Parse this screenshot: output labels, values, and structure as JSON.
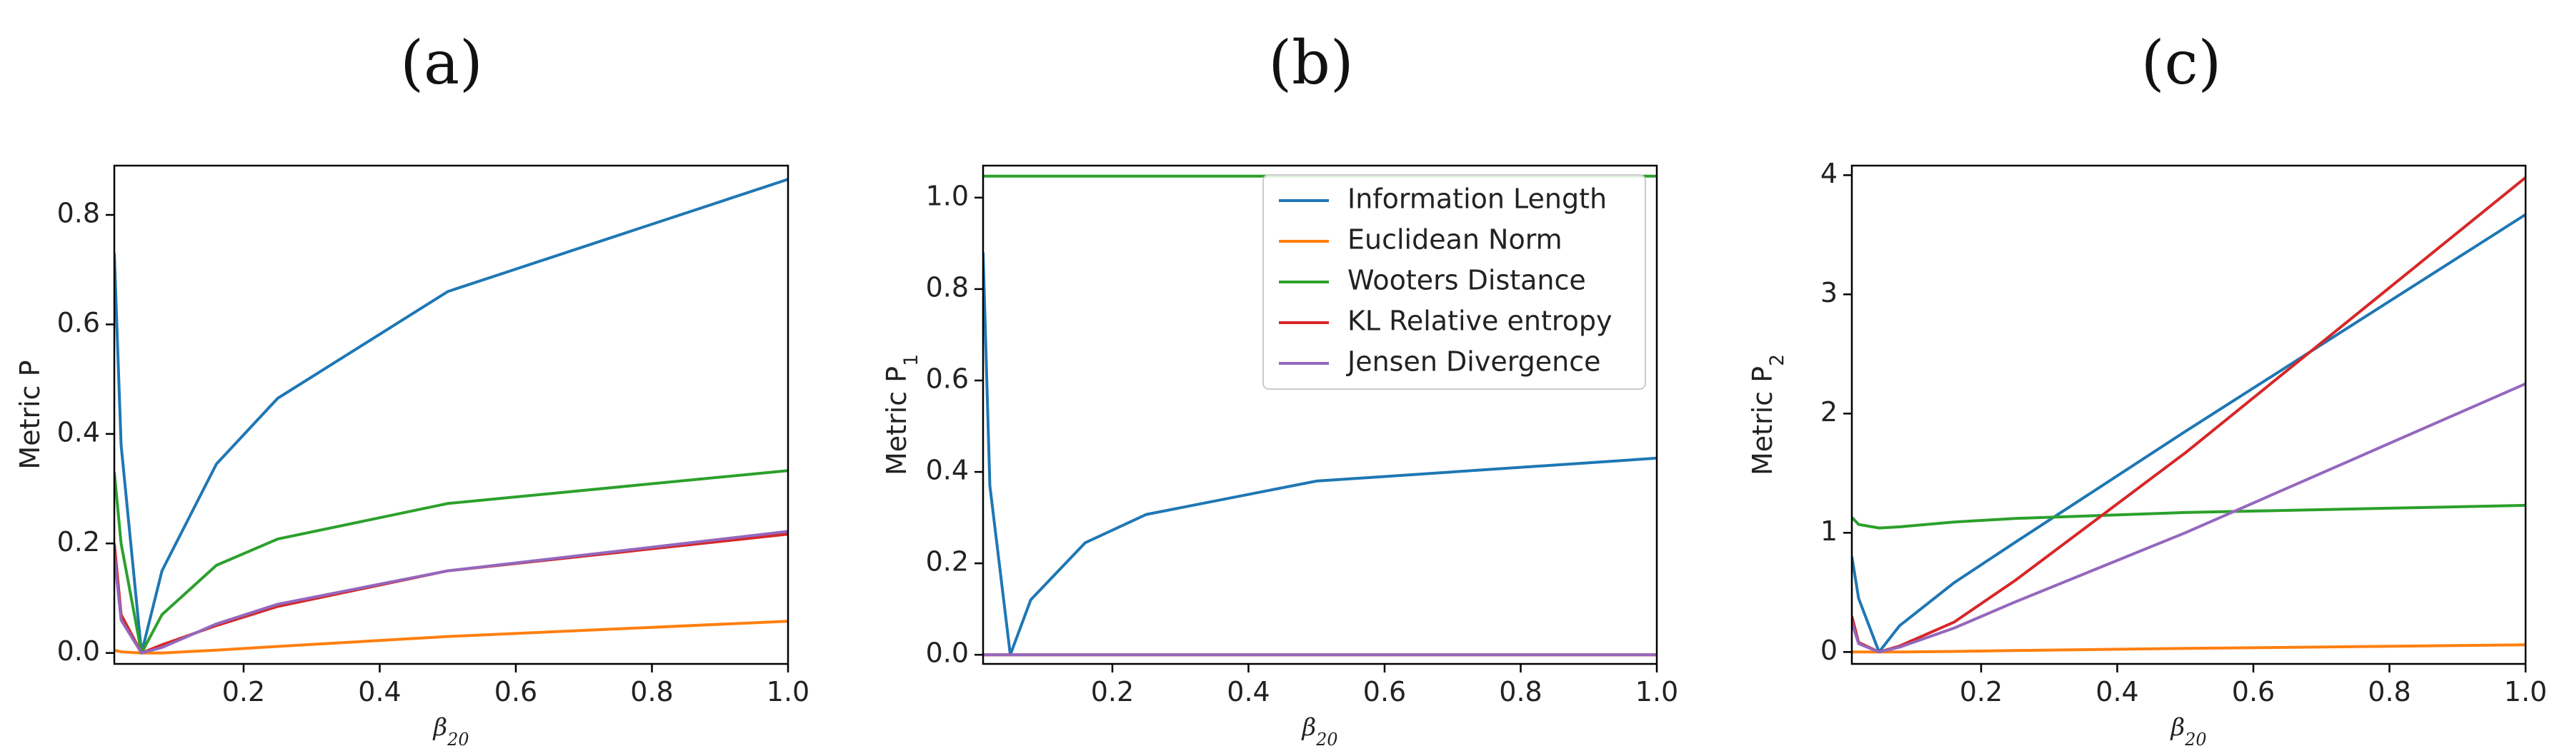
{
  "chart_data": [
    {
      "type": "line",
      "panel_label": "(a)",
      "title": "(a)",
      "xlabel": "β20",
      "ylabel": "Metric P",
      "xlim": [
        0.01,
        1.0
      ],
      "ylim": [
        -0.02,
        0.89
      ],
      "xticks": [
        0.2,
        0.4,
        0.6,
        0.8,
        1.0
      ],
      "xtick_labels": [
        "0.2",
        "0.4",
        "0.6",
        "0.8",
        "1.0"
      ],
      "yticks": [
        0.0,
        0.2,
        0.4,
        0.6,
        0.8
      ],
      "ytick_labels": [
        "0.0",
        "0.2",
        "0.4",
        "0.6",
        "0.8"
      ],
      "x": [
        0.01,
        0.02,
        0.05,
        0.08,
        0.16,
        0.25,
        0.5,
        1.0
      ],
      "series": [
        {
          "name": "Information Length",
          "color": "#1f77b4",
          "values": [
            0.73,
            0.38,
            0.0,
            0.15,
            0.345,
            0.465,
            0.66,
            0.865
          ]
        },
        {
          "name": "Euclidean Norm",
          "color": "#ff7f0e",
          "values": [
            0.005,
            0.002,
            0.0,
            0.0,
            0.005,
            0.012,
            0.03,
            0.058
          ]
        },
        {
          "name": "Wooters Distance",
          "color": "#2ca02c",
          "values": [
            0.33,
            0.2,
            0.0,
            0.07,
            0.16,
            0.208,
            0.273,
            0.333
          ]
        },
        {
          "name": "KL Relative entropy",
          "color": "#d62728",
          "values": [
            0.2,
            0.07,
            0.0,
            0.015,
            0.05,
            0.085,
            0.15,
            0.217
          ]
        },
        {
          "name": "Jensen Divergence",
          "color": "#9467bd",
          "values": [
            0.18,
            0.06,
            0.0,
            0.01,
            0.053,
            0.089,
            0.15,
            0.222
          ]
        }
      ]
    },
    {
      "type": "line",
      "panel_label": "(b)",
      "title": "(b)",
      "xlabel": "β20",
      "ylabel": "Metric P1",
      "xlim": [
        0.01,
        1.0
      ],
      "ylim": [
        -0.02,
        1.07
      ],
      "xticks": [
        0.2,
        0.4,
        0.6,
        0.8,
        1.0
      ],
      "xtick_labels": [
        "0.2",
        "0.4",
        "0.6",
        "0.8",
        "1.0"
      ],
      "yticks": [
        0.0,
        0.2,
        0.4,
        0.6,
        0.8,
        1.0
      ],
      "ytick_labels": [
        "0.0",
        "0.2",
        "0.4",
        "0.6",
        "0.8",
        "1.0"
      ],
      "x": [
        0.01,
        0.02,
        0.05,
        0.08,
        0.16,
        0.25,
        0.5,
        1.0
      ],
      "series": [
        {
          "name": "Information Length",
          "color": "#1f77b4",
          "values": [
            0.88,
            0.37,
            0.0,
            0.12,
            0.245,
            0.307,
            0.38,
            0.43
          ]
        },
        {
          "name": "Euclidean Norm",
          "color": "#ff7f0e",
          "values": [
            0.0,
            0.0,
            0.0,
            0.0,
            0.0,
            0.0,
            0.0,
            0.0
          ]
        },
        {
          "name": "Wooters Distance",
          "color": "#2ca02c",
          "values": [
            1.047,
            1.047,
            1.047,
            1.047,
            1.047,
            1.047,
            1.047,
            1.047
          ]
        },
        {
          "name": "KL Relative entropy",
          "color": "#d62728",
          "values": [
            0.0,
            0.0,
            0.0,
            0.0,
            0.0,
            0.0,
            0.0,
            0.0
          ]
        },
        {
          "name": "Jensen Divergence",
          "color": "#9467bd",
          "values": [
            0.0,
            0.0,
            0.0,
            0.0,
            0.0,
            0.0,
            0.0,
            0.0
          ]
        }
      ],
      "legend": {
        "placement": "upper-right",
        "entries": [
          "Information Length",
          "Euclidean Norm",
          "Wooters Distance",
          "KL Relative entropy",
          "Jensen Divergence"
        ]
      }
    },
    {
      "type": "line",
      "panel_label": "(c)",
      "title": "(c)",
      "xlabel": "β20",
      "ylabel": "Metric P2",
      "xlim": [
        0.01,
        1.0
      ],
      "ylim": [
        -0.1,
        4.08
      ],
      "xticks": [
        0.2,
        0.4,
        0.6,
        0.8,
        1.0
      ],
      "xtick_labels": [
        "0.2",
        "0.4",
        "0.6",
        "0.8",
        "1.0"
      ],
      "yticks": [
        0,
        1,
        2,
        3,
        4
      ],
      "ytick_labels": [
        "0",
        "1",
        "2",
        "3",
        "4"
      ],
      "x": [
        0.01,
        0.02,
        0.05,
        0.08,
        0.16,
        0.25,
        0.5,
        1.0
      ],
      "series": [
        {
          "name": "Information Length",
          "color": "#1f77b4",
          "values": [
            0.8,
            0.45,
            0.0,
            0.22,
            0.58,
            0.92,
            1.85,
            3.67
          ]
        },
        {
          "name": "Euclidean Norm",
          "color": "#ff7f0e",
          "values": [
            0.0,
            0.0,
            0.0,
            0.0,
            0.005,
            0.012,
            0.03,
            0.06
          ]
        },
        {
          "name": "Wooters Distance",
          "color": "#2ca02c",
          "values": [
            1.13,
            1.07,
            1.04,
            1.05,
            1.09,
            1.12,
            1.17,
            1.23
          ]
        },
        {
          "name": "KL Relative entropy",
          "color": "#d62728",
          "values": [
            0.3,
            0.08,
            0.0,
            0.05,
            0.25,
            0.6,
            1.67,
            3.98
          ]
        },
        {
          "name": "Jensen Divergence",
          "color": "#9467bd",
          "values": [
            0.25,
            0.07,
            0.0,
            0.04,
            0.2,
            0.42,
            1.0,
            2.25
          ]
        }
      ]
    }
  ]
}
